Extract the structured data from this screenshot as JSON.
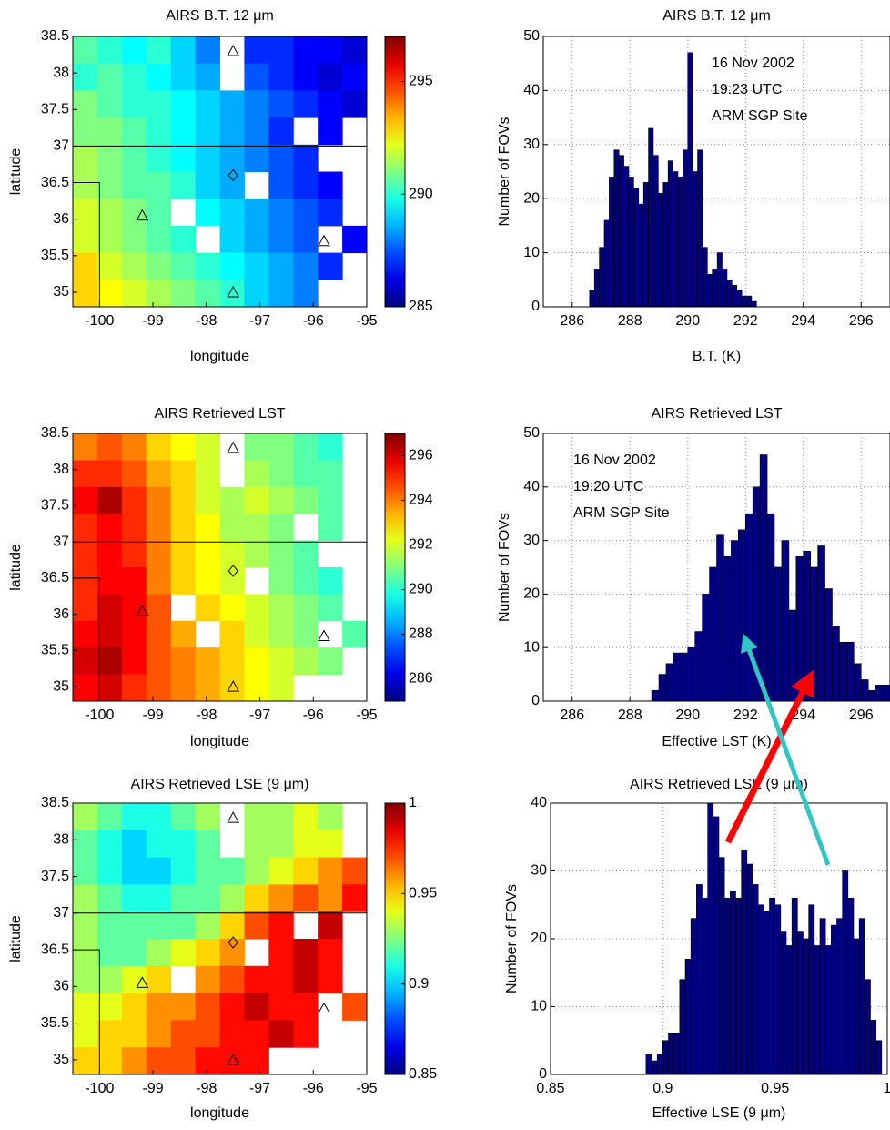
{
  "chart_data": [
    {
      "type": "heatmap",
      "title": "AIRS B.T. 12 μm",
      "xlabel": "longitude",
      "ylabel": "latitude",
      "xlim": [
        -100.5,
        -95
      ],
      "ylim": [
        34.8,
        38.5
      ],
      "xticks": [
        -100,
        -99,
        -98,
        -97,
        -96,
        -95
      ],
      "yticks": [
        35,
        35.5,
        36,
        36.5,
        37,
        37.5,
        38,
        38.5
      ],
      "clim": [
        285,
        297
      ],
      "cticks": [
        285,
        290,
        295
      ],
      "values": [
        [
          290.5,
          290,
          289.5,
          290,
          289,
          288,
          null,
          287,
          287,
          286.5,
          286.5,
          286
        ],
        [
          290,
          290.5,
          290,
          289.5,
          289,
          288.5,
          null,
          287.5,
          287,
          286.5,
          286,
          286.5
        ],
        [
          291,
          290.5,
          290,
          290,
          289.5,
          289,
          288.5,
          288,
          287.5,
          287,
          286.5,
          286
        ],
        [
          291,
          291,
          290.5,
          290,
          289.5,
          289,
          288.5,
          288,
          287,
          null,
          286.5,
          null
        ],
        [
          291.5,
          291,
          290.5,
          290,
          289.5,
          289,
          288.5,
          288,
          287.5,
          287,
          null,
          null
        ],
        [
          291.5,
          291,
          290.5,
          290.5,
          290,
          289,
          288.5,
          null,
          287.5,
          287,
          286.5,
          null
        ],
        [
          292,
          291.5,
          291,
          290.5,
          null,
          289.5,
          289,
          288.5,
          288,
          287.5,
          287,
          null
        ],
        [
          292,
          291.5,
          291,
          290.5,
          290,
          null,
          289,
          288.5,
          288,
          287.5,
          null,
          286.5
        ],
        [
          293,
          292,
          291.5,
          291,
          290.5,
          290,
          289.5,
          289,
          288.5,
          288,
          287,
          null
        ],
        [
          293,
          292.5,
          292,
          291.5,
          291,
          290.5,
          290,
          289,
          288.5,
          288,
          null,
          null
        ]
      ]
    },
    {
      "type": "histogram",
      "title": "AIRS B.T. 12 μm",
      "xlabel": "B.T. (K)",
      "ylabel": "Number of FOVs",
      "color": "#000080",
      "xlim": [
        285,
        297
      ],
      "ylim": [
        0,
        50
      ],
      "xticks": [
        286,
        288,
        290,
        292,
        294,
        296
      ],
      "yticks": [
        0,
        10,
        20,
        30,
        40,
        50
      ],
      "grid": true,
      "annotations": [
        "16 Nov 2002",
        "19:23 UTC",
        "ARM SGP Site"
      ],
      "bins": [
        286.6,
        286.77,
        286.94,
        287.11,
        287.28,
        287.45,
        287.62,
        287.79,
        287.96,
        288.13,
        288.3,
        288.47,
        288.64,
        288.81,
        288.98,
        289.15,
        289.32,
        289.49,
        289.66,
        289.83,
        290,
        290.17,
        290.34,
        290.51,
        290.68,
        290.85,
        291.02,
        291.19,
        291.36,
        291.53,
        291.7,
        291.87,
        292.04,
        292.21,
        292.38
      ],
      "values": [
        3,
        7,
        11,
        16,
        24,
        29,
        28,
        26,
        24,
        22,
        19,
        23,
        33,
        28,
        21,
        23,
        27,
        25,
        24,
        29,
        47,
        25,
        29,
        11,
        6,
        7,
        10,
        7,
        5,
        4,
        3,
        2,
        2,
        1
      ]
    },
    {
      "type": "heatmap",
      "title": "AIRS Retrieved LST",
      "xlabel": "longitude",
      "ylabel": "latitude",
      "xlim": [
        -100.5,
        -95
      ],
      "ylim": [
        34.8,
        38.5
      ],
      "xticks": [
        -100,
        -99,
        -98,
        -97,
        -96,
        -95
      ],
      "yticks": [
        35,
        35.5,
        36,
        36.5,
        37,
        37.5,
        38,
        38.5
      ],
      "clim": [
        285,
        297
      ],
      "cticks": [
        286,
        288,
        290,
        292,
        294,
        296
      ],
      "values": [
        [
          294,
          294.5,
          294,
          293,
          292.5,
          292,
          null,
          291,
          291,
          290.5,
          290,
          null
        ],
        [
          295,
          295,
          294.5,
          293.5,
          293,
          292,
          null,
          291.5,
          291,
          290.5,
          290.5,
          null
        ],
        [
          295.5,
          296.5,
          295,
          294,
          293,
          292,
          291.5,
          292,
          291.5,
          291,
          290.5,
          null
        ],
        [
          295,
          295.5,
          295,
          294,
          293,
          292.5,
          291.5,
          291.5,
          291,
          null,
          290.5,
          null
        ],
        [
          295,
          295.5,
          295,
          294,
          293,
          292.5,
          292,
          291.5,
          291,
          290.5,
          null,
          null
        ],
        [
          295,
          295.5,
          295.5,
          294,
          293,
          292.5,
          292,
          null,
          291,
          290.5,
          290,
          null
        ],
        [
          295,
          296,
          295.5,
          294.5,
          null,
          293,
          292.5,
          292,
          291.5,
          291,
          290.5,
          null
        ],
        [
          295.5,
          296,
          295.5,
          294.5,
          293.5,
          null,
          293,
          292,
          291.5,
          291,
          null,
          290.5
        ],
        [
          296,
          296.5,
          295.5,
          294.5,
          294,
          293.5,
          293,
          292.5,
          292,
          291.5,
          291,
          null
        ],
        [
          295.5,
          296,
          295,
          294.5,
          294,
          293.5,
          293,
          292.5,
          292,
          null,
          null,
          null
        ]
      ]
    },
    {
      "type": "histogram",
      "title": "AIRS Retrieved LST",
      "xlabel": "Effective LST (K)",
      "ylabel": "Number of FOVs",
      "color": "#000080",
      "xlim": [
        285,
        297
      ],
      "ylim": [
        0,
        50
      ],
      "xticks": [
        286,
        288,
        290,
        292,
        294,
        296
      ],
      "yticks": [
        0,
        10,
        20,
        30,
        40,
        50
      ],
      "grid": true,
      "annotations": [
        "16 Nov 2002",
        "19:20 UTC",
        "ARM SGP Site"
      ],
      "bins": [
        288.75,
        289,
        289.25,
        289.5,
        289.75,
        290,
        290.25,
        290.5,
        290.75,
        291,
        291.25,
        291.5,
        291.75,
        292,
        292.25,
        292.5,
        292.75,
        293,
        293.25,
        293.5,
        293.75,
        294,
        294.25,
        294.5,
        294.75,
        295,
        295.25,
        295.5,
        295.75,
        296,
        296.25,
        296.5,
        296.75,
        297
      ],
      "values": [
        2,
        5,
        7,
        9,
        9,
        10,
        13,
        20,
        25,
        31,
        27,
        30,
        32,
        35,
        40,
        46,
        35,
        25,
        30,
        17,
        27,
        28,
        25,
        29,
        21,
        14,
        11,
        11,
        7,
        4,
        2,
        3,
        3
      ]
    },
    {
      "type": "heatmap",
      "title": "AIRS Retrieved LSE (9 μm)",
      "xlabel": "longitude",
      "ylabel": "latitude",
      "xlim": [
        -100.5,
        -95
      ],
      "ylim": [
        34.8,
        38.5
      ],
      "xticks": [
        -100,
        -99,
        -98,
        -97,
        -96,
        -95
      ],
      "yticks": [
        35,
        35.5,
        36,
        36.5,
        37,
        37.5,
        38,
        38.5
      ],
      "clim": [
        0.85,
        1
      ],
      "cticks": [
        0.85,
        0.9,
        0.95,
        1
      ],
      "values": [
        [
          0.93,
          0.92,
          0.91,
          0.91,
          0.92,
          0.93,
          null,
          0.93,
          0.93,
          0.94,
          0.93,
          null
        ],
        [
          0.92,
          0.91,
          0.9,
          0.91,
          0.91,
          0.92,
          null,
          0.93,
          0.93,
          0.94,
          0.94,
          null
        ],
        [
          0.92,
          0.91,
          0.9,
          0.9,
          0.91,
          0.92,
          0.92,
          0.93,
          0.94,
          0.95,
          0.96,
          0.97
        ],
        [
          0.93,
          0.92,
          0.91,
          0.91,
          0.92,
          0.92,
          0.93,
          0.95,
          0.96,
          0.97,
          0.96,
          0.98
        ],
        [
          0.93,
          0.92,
          0.92,
          0.92,
          0.92,
          0.93,
          0.95,
          0.97,
          0.98,
          null,
          0.99,
          null
        ],
        [
          0.93,
          0.92,
          0.92,
          0.93,
          0.94,
          0.95,
          0.96,
          null,
          0.98,
          0.99,
          0.98,
          null
        ],
        [
          0.93,
          0.93,
          0.94,
          0.95,
          null,
          0.96,
          0.97,
          0.98,
          0.98,
          0.99,
          0.98,
          null
        ],
        [
          0.94,
          0.94,
          0.95,
          0.96,
          0.96,
          0.97,
          0.98,
          0.99,
          0.98,
          0.98,
          null,
          0.97
        ],
        [
          0.94,
          0.95,
          0.95,
          0.96,
          0.97,
          0.97,
          0.98,
          0.98,
          0.99,
          0.98,
          null,
          null
        ],
        [
          0.95,
          0.95,
          0.96,
          0.97,
          0.97,
          0.98,
          0.98,
          0.98,
          null,
          null,
          null,
          null
        ]
      ]
    },
    {
      "type": "histogram",
      "title": "AIRS Retrieved LSE (9 μm)",
      "xlabel": "Effective LSE (9 μm)",
      "ylabel": "Number of FOVs",
      "color": "#000080",
      "xlim": [
        0.85,
        1
      ],
      "ylim": [
        0,
        40
      ],
      "xticks": [
        0.85,
        0.9,
        0.95,
        1
      ],
      "yticks": [
        0,
        10,
        20,
        30,
        40
      ],
      "grid": true,
      "bins": [
        0.8925,
        0.895,
        0.8975,
        0.9,
        0.9025,
        0.905,
        0.9075,
        0.91,
        0.9125,
        0.915,
        0.9175,
        0.92,
        0.9225,
        0.925,
        0.9275,
        0.93,
        0.9325,
        0.935,
        0.9375,
        0.94,
        0.9425,
        0.945,
        0.9475,
        0.95,
        0.9525,
        0.955,
        0.9575,
        0.96,
        0.9625,
        0.965,
        0.9675,
        0.97,
        0.9725,
        0.975,
        0.9775,
        0.98,
        0.9825,
        0.985,
        0.9875,
        0.99,
        0.9925,
        0.995,
        0.9975
      ],
      "values": [
        3,
        2,
        3,
        5,
        6,
        6,
        14,
        17,
        23,
        28,
        26,
        40,
        38,
        32,
        26,
        27,
        26,
        33,
        31,
        28,
        25,
        24,
        26,
        25,
        21,
        19,
        26,
        21,
        20,
        25,
        19,
        23,
        19,
        22,
        23,
        30,
        26,
        20,
        23,
        14,
        8,
        5
      ]
    }
  ]
}
